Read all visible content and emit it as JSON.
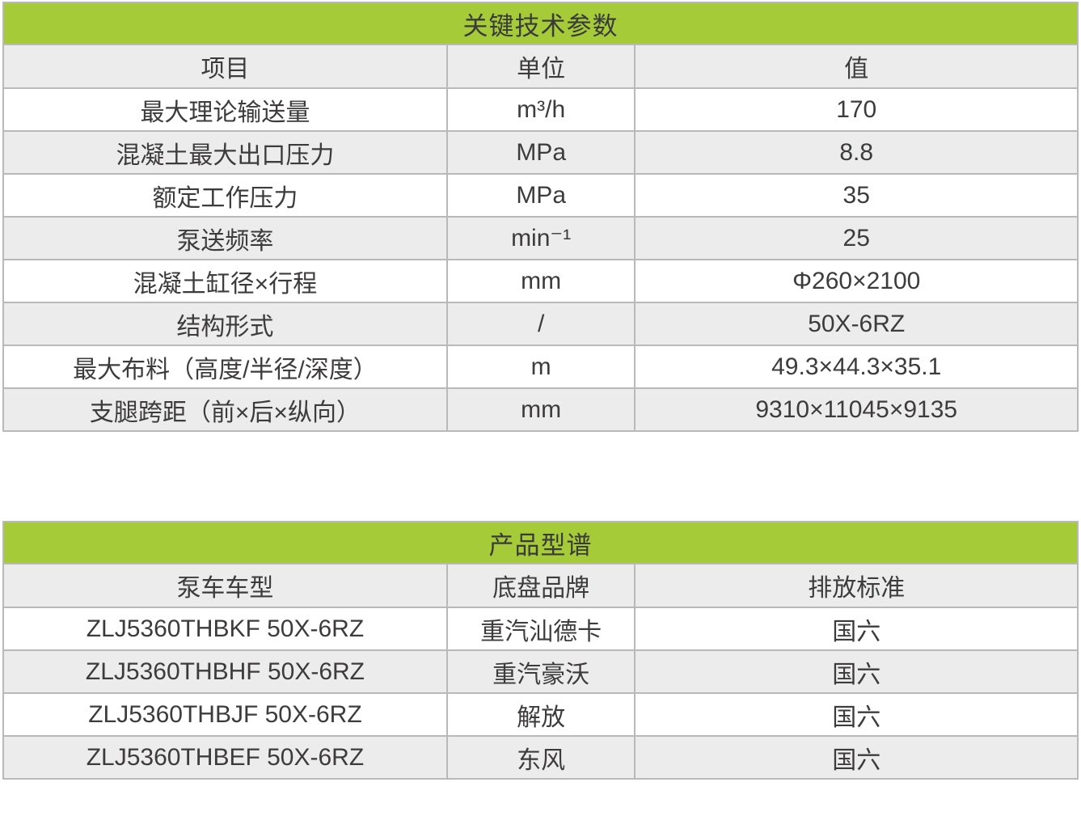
{
  "colors": {
    "header_green": "#a5cb39",
    "row_alt_gray": "#ececec",
    "border_gray": "#b9b9b9",
    "text": "#3d3b3c"
  },
  "tables": [
    {
      "title": "关键技术参数",
      "headers": [
        "项目",
        "单位",
        "值"
      ],
      "rows": [
        [
          "最大理论输送量",
          "m³/h",
          "170"
        ],
        [
          "混凝土最大出口压力",
          "MPa",
          "8.8"
        ],
        [
          "额定工作压力",
          "MPa",
          "35"
        ],
        [
          "泵送频率",
          "min⁻¹",
          "25"
        ],
        [
          "混凝土缸径×行程",
          "mm",
          "Φ260×2100"
        ],
        [
          "结构形式",
          "/",
          "50X-6RZ"
        ],
        [
          "最大布料（高度/半径/深度）",
          "m",
          "49.3×44.3×35.1"
        ],
        [
          "支腿跨距（前×后×纵向）",
          "mm",
          "9310×11045×9135"
        ]
      ]
    },
    {
      "title": "产品型谱",
      "headers": [
        "泵车车型",
        "底盘品牌",
        "排放标准"
      ],
      "rows": [
        [
          "ZLJ5360THBKF 50X-6RZ",
          "重汽汕德卡",
          "国六"
        ],
        [
          "ZLJ5360THBHF 50X-6RZ",
          "重汽豪沃",
          "国六"
        ],
        [
          "ZLJ5360THBJF 50X-6RZ",
          "解放",
          "国六"
        ],
        [
          "ZLJ5360THBEF 50X-6RZ",
          "东风",
          "国六"
        ]
      ]
    }
  ]
}
